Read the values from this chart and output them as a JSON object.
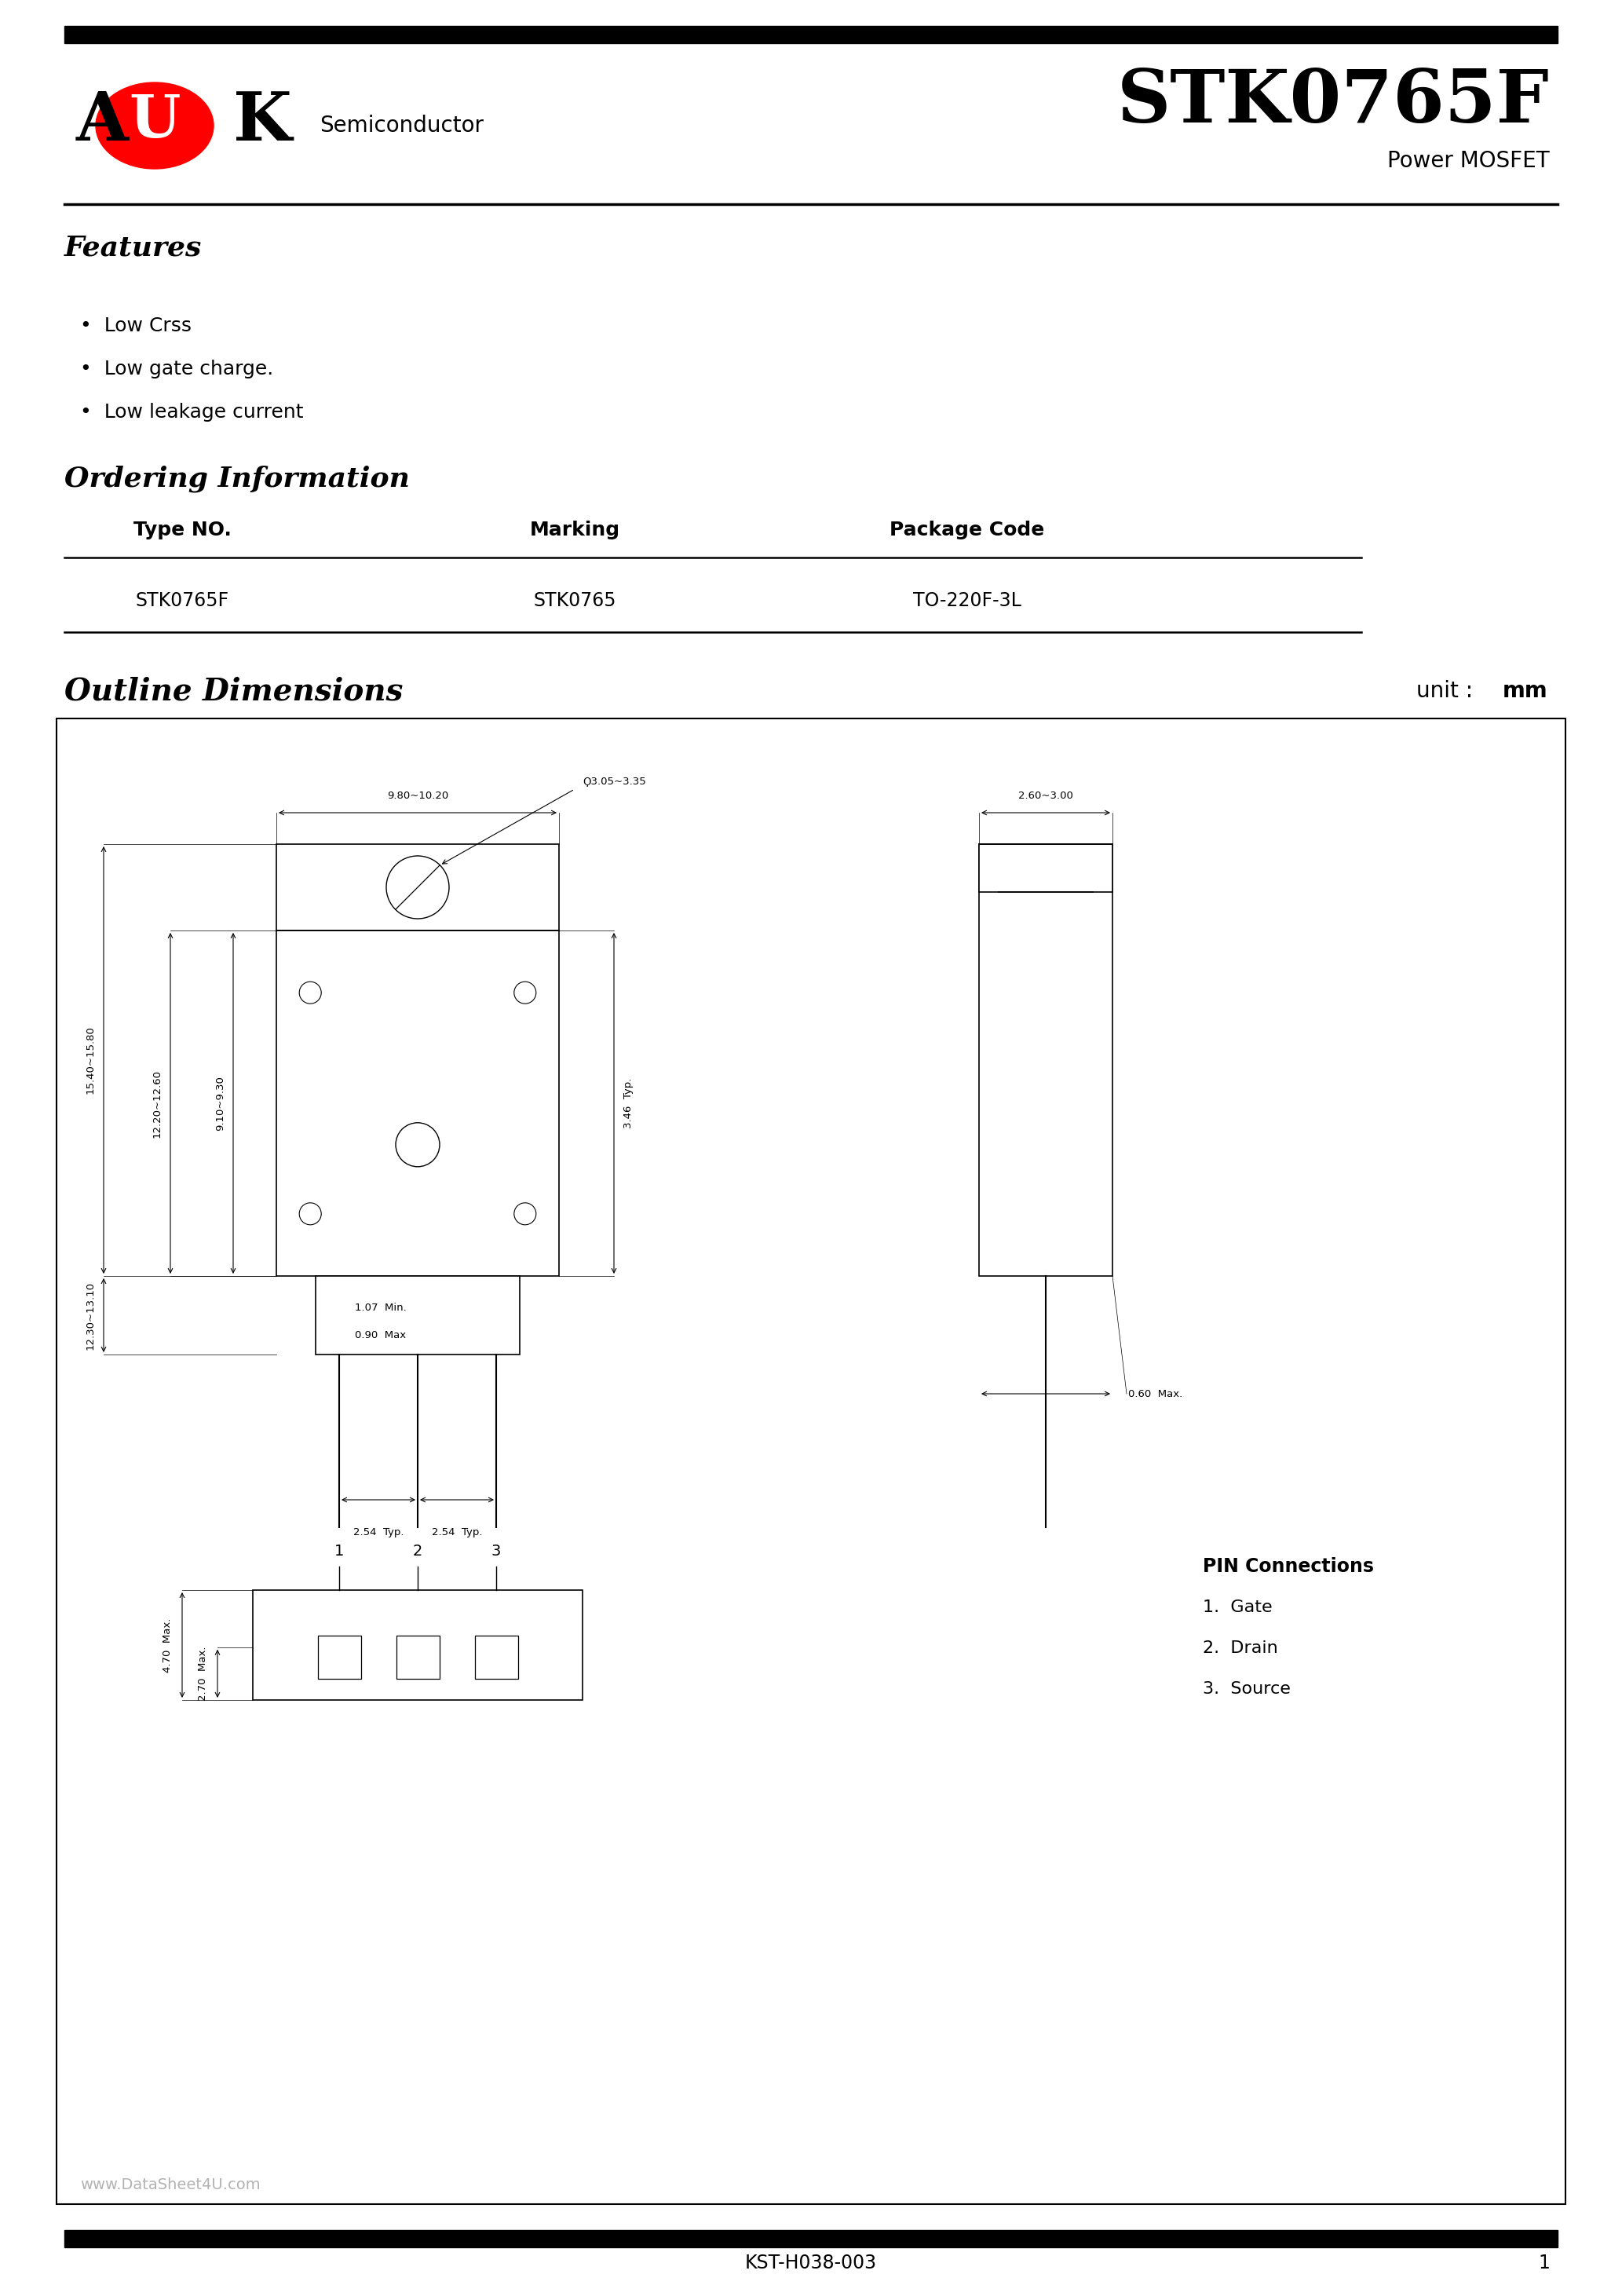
{
  "page_width": 20.66,
  "page_height": 29.24,
  "bg_color": "#ffffff",
  "logo_semiconductor": "Semiconductor",
  "part_number": "STK0765F",
  "part_type": "Power MOSFET",
  "features_title": "Features",
  "features_items": [
    "Low Crss",
    "Low gate charge.",
    "Low leakage current"
  ],
  "ordering_title": "Ordering Information",
  "table_headers": [
    "Type NO.",
    "Marking",
    "Package Code"
  ],
  "table_row": [
    "STK0765F",
    "STK0765",
    "TO-220F-3L"
  ],
  "outline_title": "Outline Dimensions",
  "unit_label": "unit :",
  "unit_value": "mm",
  "footer_code": "KST-H038-003",
  "footer_page": "1",
  "watermark": "www.DataSheet4U.com",
  "pin_connections_title": "PIN Connections",
  "pin_connections": [
    "1.  Gate",
    "2.  Drain",
    "3.  Source"
  ]
}
